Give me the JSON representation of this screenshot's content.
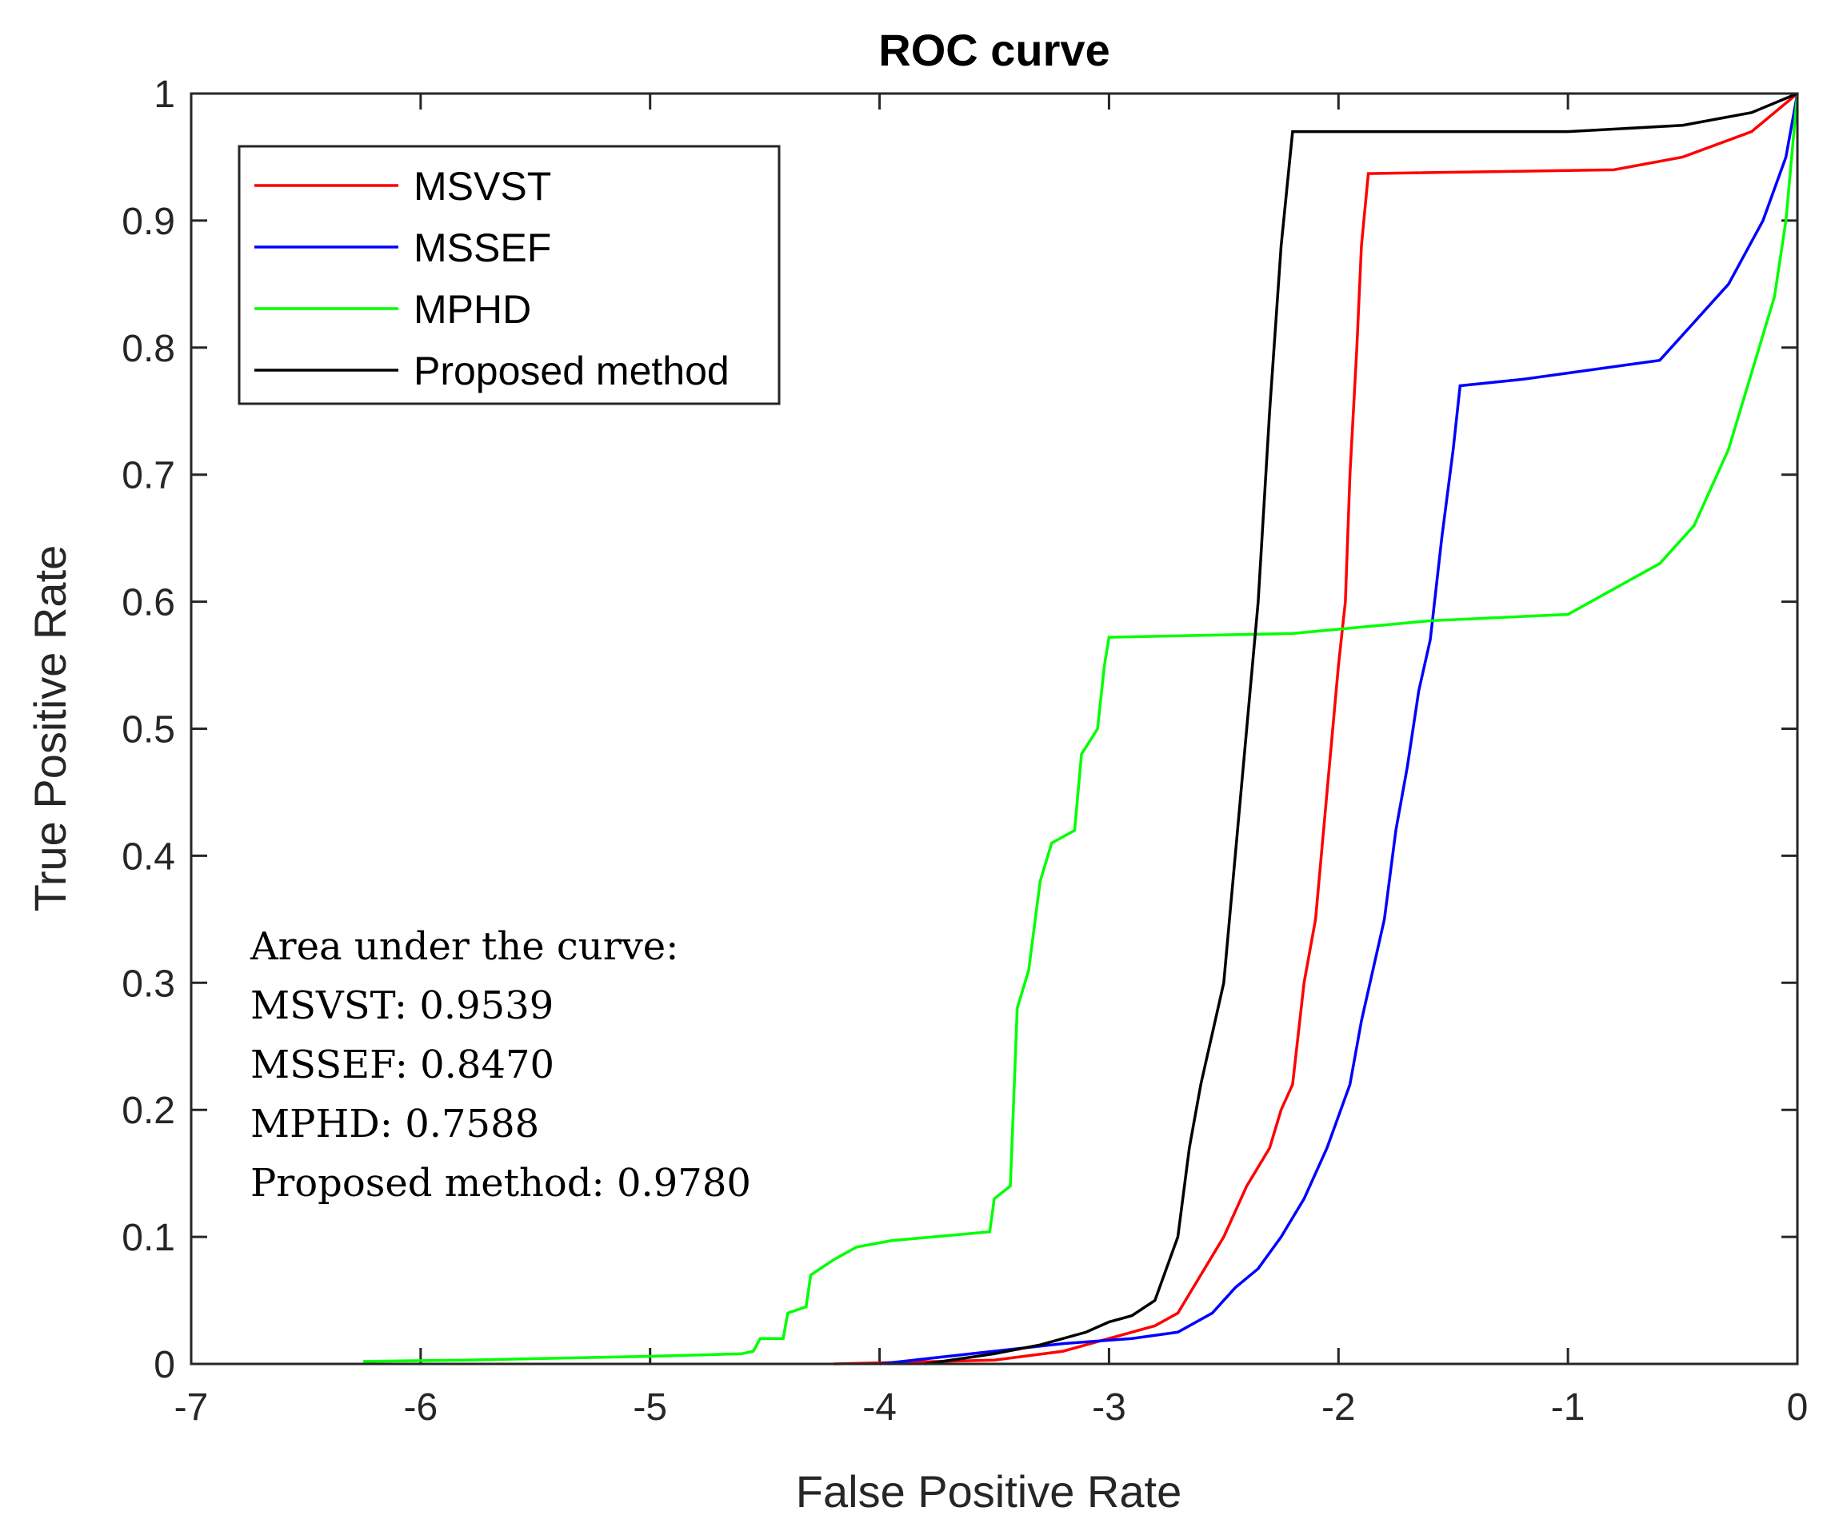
{
  "chart_data": {
    "type": "line",
    "title": "ROC curve",
    "xlabel": "False Positive Rate",
    "ylabel": "True Positive Rate",
    "xlim": [
      -7,
      0
    ],
    "ylim": [
      0,
      1
    ],
    "xticks": [
      "-7",
      "-6",
      "-5",
      "-4",
      "-3",
      "-2",
      "-1",
      "0"
    ],
    "yticks": [
      "0",
      "0.1",
      "0.2",
      "0.3",
      "0.4",
      "0.5",
      "0.6",
      "0.7",
      "0.8",
      "0.9",
      "1"
    ],
    "legend_position": "top-left",
    "series": [
      {
        "name": "MSVST",
        "color": "#ff0000",
        "points": [
          [
            -4.2,
            0
          ],
          [
            -3.5,
            0.003
          ],
          [
            -3.2,
            0.01
          ],
          [
            -3,
            0.02
          ],
          [
            -2.8,
            0.03
          ],
          [
            -2.7,
            0.04
          ],
          [
            -2.6,
            0.07
          ],
          [
            -2.5,
            0.1
          ],
          [
            -2.4,
            0.14
          ],
          [
            -2.3,
            0.17
          ],
          [
            -2.25,
            0.2
          ],
          [
            -2.2,
            0.22
          ],
          [
            -2.15,
            0.3
          ],
          [
            -2.1,
            0.35
          ],
          [
            -2.05,
            0.45
          ],
          [
            -2.0,
            0.55
          ],
          [
            -1.97,
            0.6
          ],
          [
            -1.95,
            0.7
          ],
          [
            -1.92,
            0.8
          ],
          [
            -1.9,
            0.88
          ],
          [
            -1.87,
            0.937
          ],
          [
            -0.8,
            0.94
          ],
          [
            -0.5,
            0.95
          ],
          [
            -0.2,
            0.97
          ],
          [
            0,
            1
          ]
        ]
      },
      {
        "name": "MSSEF",
        "color": "#0000ff",
        "points": [
          [
            -4,
            0
          ],
          [
            -3.6,
            0.008
          ],
          [
            -3.2,
            0.016
          ],
          [
            -2.9,
            0.02
          ],
          [
            -2.7,
            0.025
          ],
          [
            -2.55,
            0.04
          ],
          [
            -2.45,
            0.06
          ],
          [
            -2.35,
            0.075
          ],
          [
            -2.25,
            0.1
          ],
          [
            -2.15,
            0.13
          ],
          [
            -2.05,
            0.17
          ],
          [
            -1.95,
            0.22
          ],
          [
            -1.9,
            0.27
          ],
          [
            -1.8,
            0.35
          ],
          [
            -1.75,
            0.42
          ],
          [
            -1.7,
            0.47
          ],
          [
            -1.65,
            0.53
          ],
          [
            -1.6,
            0.57
          ],
          [
            -1.55,
            0.65
          ],
          [
            -1.5,
            0.72
          ],
          [
            -1.47,
            0.77
          ],
          [
            -1.2,
            0.775
          ],
          [
            -1.0,
            0.78
          ],
          [
            -0.6,
            0.79
          ],
          [
            -0.5,
            0.81
          ],
          [
            -0.3,
            0.85
          ],
          [
            -0.15,
            0.9
          ],
          [
            -0.05,
            0.95
          ],
          [
            0,
            1
          ]
        ]
      },
      {
        "name": "MPHD",
        "color": "#00ff00",
        "points": [
          [
            -6.25,
            0.002
          ],
          [
            -5.8,
            0.003
          ],
          [
            -5,
            0.006
          ],
          [
            -4.6,
            0.008
          ],
          [
            -4.55,
            0.01
          ],
          [
            -4.52,
            0.02
          ],
          [
            -4.42,
            0.02
          ],
          [
            -4.4,
            0.04
          ],
          [
            -4.32,
            0.045
          ],
          [
            -4.3,
            0.07
          ],
          [
            -4.2,
            0.082
          ],
          [
            -4.1,
            0.092
          ],
          [
            -3.95,
            0.097
          ],
          [
            -3.52,
            0.104
          ],
          [
            -3.5,
            0.13
          ],
          [
            -3.43,
            0.14
          ],
          [
            -3.4,
            0.28
          ],
          [
            -3.35,
            0.31
          ],
          [
            -3.3,
            0.38
          ],
          [
            -3.25,
            0.41
          ],
          [
            -3.15,
            0.42
          ],
          [
            -3.12,
            0.48
          ],
          [
            -3.05,
            0.5
          ],
          [
            -3.02,
            0.55
          ],
          [
            -3,
            0.572
          ],
          [
            -2.2,
            0.575
          ],
          [
            -1.6,
            0.585
          ],
          [
            -1.0,
            0.59
          ],
          [
            -0.8,
            0.61
          ],
          [
            -0.6,
            0.63
          ],
          [
            -0.45,
            0.66
          ],
          [
            -0.3,
            0.72
          ],
          [
            -0.2,
            0.78
          ],
          [
            -0.1,
            0.84
          ],
          [
            -0.05,
            0.9
          ],
          [
            0,
            1
          ]
        ]
      },
      {
        "name": "Proposed method",
        "color": "#000000",
        "points": [
          [
            -3.8,
            0
          ],
          [
            -3.5,
            0.008
          ],
          [
            -3.3,
            0.015
          ],
          [
            -3.1,
            0.025
          ],
          [
            -3,
            0.033
          ],
          [
            -2.9,
            0.038
          ],
          [
            -2.8,
            0.05
          ],
          [
            -2.75,
            0.075
          ],
          [
            -2.7,
            0.1
          ],
          [
            -2.65,
            0.17
          ],
          [
            -2.6,
            0.22
          ],
          [
            -2.55,
            0.26
          ],
          [
            -2.5,
            0.3
          ],
          [
            -2.45,
            0.4
          ],
          [
            -2.4,
            0.5
          ],
          [
            -2.35,
            0.6
          ],
          [
            -2.3,
            0.75
          ],
          [
            -2.25,
            0.88
          ],
          [
            -2.2,
            0.97
          ],
          [
            -1,
            0.97
          ],
          [
            -0.5,
            0.975
          ],
          [
            -0.2,
            0.985
          ],
          [
            0,
            1
          ]
        ]
      }
    ],
    "annotation": [
      "Area under the curve:",
      "MSVST: 0.9539",
      "MSSEF: 0.8470",
      "MPHD: 0.7588",
      "Proposed method: 0.9780"
    ]
  }
}
